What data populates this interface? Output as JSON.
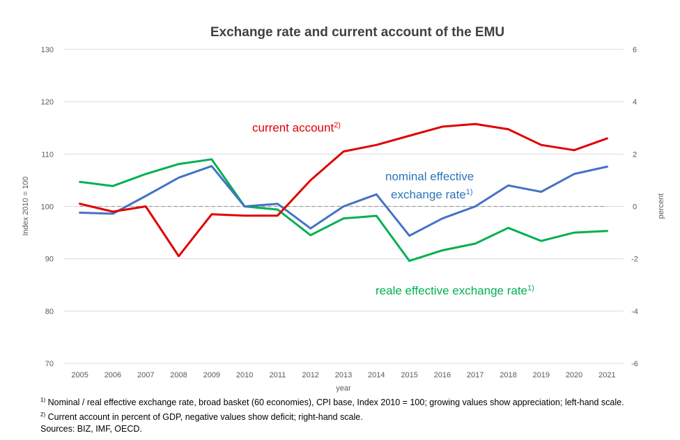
{
  "chart_data": {
    "type": "line",
    "title": "Exchange rate and current account of the EMU",
    "xlabel": "year",
    "ylabel_left": "Index 2010 = 100",
    "ylabel_right": "percent",
    "ylim_left": [
      70,
      130
    ],
    "ylim_right": [
      -6,
      6
    ],
    "yticks_left": [
      70,
      80,
      90,
      100,
      110,
      120,
      130
    ],
    "yticks_right": [
      -6,
      -4,
      -2,
      0,
      2,
      4,
      6
    ],
    "grid": "horizontal",
    "reference_line": {
      "axis": "left",
      "value": 100,
      "style": "dashed"
    },
    "x": [
      "2005",
      "2006",
      "2007",
      "2008",
      "2009",
      "2010",
      "2011",
      "2012",
      "2013",
      "2014",
      "2015",
      "2016",
      "2017",
      "2018",
      "2019",
      "2020",
      "2021"
    ],
    "series": [
      {
        "name": "current account",
        "label_sup": "2)",
        "axis": "right",
        "color": "#e00000",
        "values": [
          0.1,
          -0.2,
          0.0,
          -1.9,
          -0.3,
          -0.35,
          -0.35,
          1.0,
          2.1,
          2.35,
          2.7,
          3.05,
          3.15,
          2.95,
          2.35,
          2.15,
          2.6
        ]
      },
      {
        "name_line1": "nominal effective",
        "name_line2": "exchange rate",
        "label_sup": "1)",
        "axis": "left",
        "color": "#4472c4",
        "values": [
          98.8,
          98.6,
          102.0,
          105.5,
          107.7,
          100.0,
          100.5,
          95.8,
          100.0,
          102.3,
          94.4,
          97.7,
          100.0,
          104.0,
          102.8,
          106.2,
          107.6
        ]
      },
      {
        "name": "reale effective exchange rate",
        "label_sup": "1)",
        "axis": "left",
        "color": "#00b050",
        "values": [
          104.7,
          103.9,
          106.2,
          108.1,
          109.0,
          100.0,
          99.4,
          94.5,
          97.7,
          98.2,
          89.6,
          91.6,
          92.9,
          95.9,
          93.4,
          95.0,
          95.3
        ]
      }
    ]
  },
  "footnotes": {
    "note1_marker": "1)",
    "note1": " Nominal / real effective exchange rate, broad basket (60 economies), CPI base, Index 2010 = 100;  growing values show appreciation; left-hand scale.",
    "note2_marker": "2)",
    "note2": " Current account in percent of GDP, negative values show deficit; right-hand scale.",
    "sources": "Sources: BIZ, IMF, OECD."
  }
}
